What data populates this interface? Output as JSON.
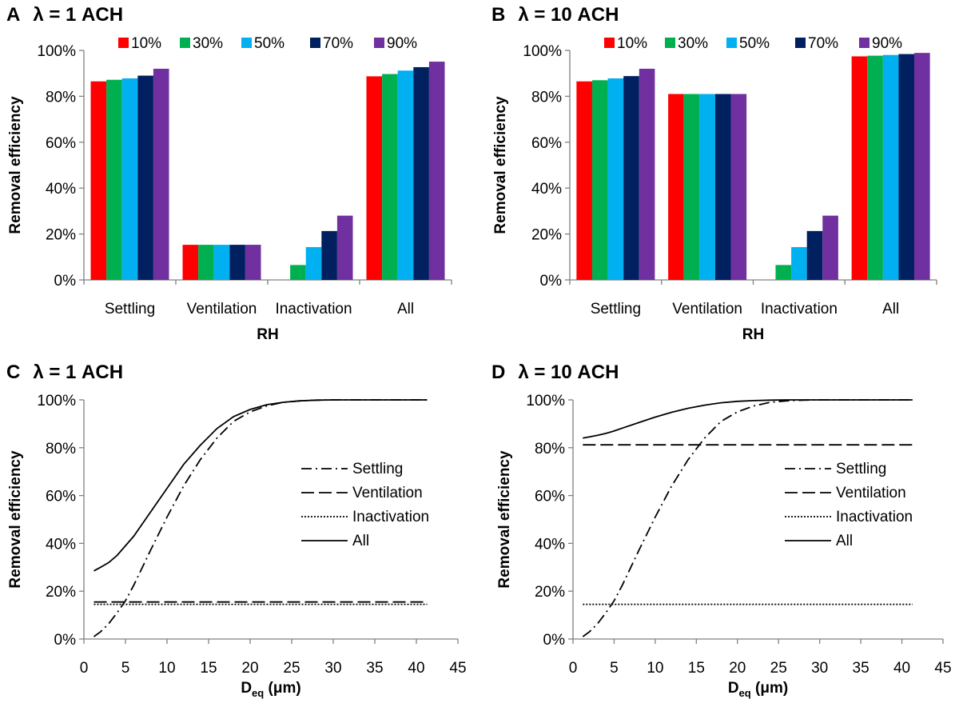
{
  "figure": {
    "panels": [
      {
        "letter": "A",
        "title": "λ = 1 ACH"
      },
      {
        "letter": "B",
        "title": "λ = 10 ACH"
      },
      {
        "letter": "C",
        "title": "λ = 1 ACH"
      },
      {
        "letter": "D",
        "title": "λ = 10 ACH"
      }
    ]
  },
  "chart_data": [
    {
      "panel": "A",
      "type": "bar",
      "title": "λ = 1 ACH",
      "xlabel": "RH",
      "ylabel": "Removal efficiency",
      "categories": [
        "Settling",
        "Ventilation",
        "Inactivation",
        "All"
      ],
      "series": [
        {
          "name": "10%",
          "color": "#ff0000",
          "values": [
            0.865,
            0.153,
            0.0,
            0.887
          ]
        },
        {
          "name": "30%",
          "color": "#00b050",
          "values": [
            0.872,
            0.153,
            0.065,
            0.897
          ]
        },
        {
          "name": "50%",
          "color": "#00b0f0",
          "values": [
            0.878,
            0.153,
            0.143,
            0.912
          ]
        },
        {
          "name": "70%",
          "color": "#002060",
          "values": [
            0.89,
            0.153,
            0.213,
            0.927
          ]
        },
        {
          "name": "90%",
          "color": "#7030a0",
          "values": [
            0.92,
            0.153,
            0.28,
            0.951
          ]
        }
      ],
      "yticks": [
        "0%",
        "20%",
        "40%",
        "60%",
        "80%",
        "100%"
      ],
      "ylim": [
        0,
        1
      ],
      "legend": "top",
      "grid": false
    },
    {
      "panel": "B",
      "type": "bar",
      "title": "λ = 10 ACH",
      "xlabel": "RH",
      "ylabel": "Removal efficiency",
      "categories": [
        "Settling",
        "Ventilation",
        "Inactivation",
        "All"
      ],
      "series": [
        {
          "name": "10%",
          "color": "#ff0000",
          "values": [
            0.865,
            0.81,
            0.0,
            0.974
          ]
        },
        {
          "name": "30%",
          "color": "#00b050",
          "values": [
            0.87,
            0.81,
            0.065,
            0.977
          ]
        },
        {
          "name": "50%",
          "color": "#00b0f0",
          "values": [
            0.878,
            0.81,
            0.143,
            0.98
          ]
        },
        {
          "name": "70%",
          "color": "#002060",
          "values": [
            0.888,
            0.81,
            0.213,
            0.984
          ]
        },
        {
          "name": "90%",
          "color": "#7030a0",
          "values": [
            0.92,
            0.81,
            0.28,
            0.989
          ]
        }
      ],
      "yticks": [
        "0%",
        "20%",
        "40%",
        "60%",
        "80%",
        "100%"
      ],
      "ylim": [
        0,
        1
      ],
      "legend": "top",
      "grid": false
    },
    {
      "panel": "C",
      "type": "line",
      "title": "λ = 1 ACH",
      "xlabel_main": "D",
      "xlabel_sub": "eq",
      "xlabel_unit": " (μm)",
      "ylabel": "Removal efficiency",
      "xticks": [
        "0",
        "5",
        "10",
        "15",
        "20",
        "25",
        "30",
        "35",
        "40",
        "45"
      ],
      "yticks": [
        "0%",
        "20%",
        "40%",
        "60%",
        "80%",
        "100%"
      ],
      "xlim": [
        0,
        45
      ],
      "ylim": [
        0,
        1
      ],
      "legend": "right",
      "grid": false,
      "series": [
        {
          "name": "Settling",
          "style": "dashdot",
          "x": [
            1.2,
            2,
            3,
            4,
            5,
            6,
            8,
            10,
            12,
            14,
            16,
            18,
            20,
            22,
            24,
            26,
            28,
            30,
            35,
            41.3
          ],
          "y": [
            0.01,
            0.03,
            0.065,
            0.11,
            0.16,
            0.225,
            0.37,
            0.51,
            0.64,
            0.75,
            0.84,
            0.91,
            0.95,
            0.975,
            0.99,
            0.996,
            0.999,
            1.0,
            1.0,
            1.0
          ]
        },
        {
          "name": "Ventilation",
          "style": "dashed",
          "x": [
            1.2,
            41.3
          ],
          "y": [
            0.155,
            0.155
          ]
        },
        {
          "name": "Inactivation",
          "style": "dotted",
          "x": [
            1.2,
            41.3
          ],
          "y": [
            0.145,
            0.145
          ]
        },
        {
          "name": "All",
          "style": "solid",
          "x": [
            1.2,
            2,
            3,
            4,
            5,
            6,
            8,
            10,
            12,
            14,
            16,
            18,
            20,
            22,
            24,
            26,
            28,
            30,
            35,
            41.3
          ],
          "y": [
            0.285,
            0.3,
            0.32,
            0.35,
            0.39,
            0.43,
            0.53,
            0.63,
            0.73,
            0.81,
            0.88,
            0.93,
            0.96,
            0.98,
            0.99,
            0.996,
            0.999,
            1.0,
            1.0,
            1.0
          ]
        }
      ]
    },
    {
      "panel": "D",
      "type": "line",
      "title": "λ = 10 ACH",
      "xlabel_main": "D",
      "xlabel_sub": "eq",
      "xlabel_unit": " (μm)",
      "ylabel": "Removal efficiency",
      "xticks": [
        "0",
        "5",
        "10",
        "15",
        "20",
        "25",
        "30",
        "35",
        "40",
        "45"
      ],
      "yticks": [
        "0%",
        "20%",
        "40%",
        "60%",
        "80%",
        "100%"
      ],
      "xlim": [
        0,
        45
      ],
      "ylim": [
        0,
        1
      ],
      "legend": "right",
      "grid": false,
      "series": [
        {
          "name": "Settling",
          "style": "dashdot",
          "x": [
            1.2,
            2,
            3,
            4,
            5,
            6,
            8,
            10,
            12,
            14,
            16,
            18,
            20,
            22,
            24,
            26,
            28,
            30,
            35,
            41.3
          ],
          "y": [
            0.01,
            0.03,
            0.065,
            0.11,
            0.16,
            0.225,
            0.37,
            0.51,
            0.64,
            0.75,
            0.84,
            0.91,
            0.95,
            0.975,
            0.99,
            0.996,
            0.999,
            1.0,
            1.0,
            1.0
          ]
        },
        {
          "name": "Ventilation",
          "style": "dashed",
          "x": [
            1.2,
            41.3
          ],
          "y": [
            0.812,
            0.812
          ]
        },
        {
          "name": "Inactivation",
          "style": "dotted",
          "x": [
            1.2,
            41.3
          ],
          "y": [
            0.145,
            0.145
          ]
        },
        {
          "name": "All",
          "style": "solid",
          "x": [
            1.2,
            2,
            3,
            4,
            5,
            6,
            8,
            10,
            12,
            14,
            16,
            18,
            20,
            22,
            24,
            26,
            28,
            30,
            35,
            41.3
          ],
          "y": [
            0.84,
            0.845,
            0.852,
            0.86,
            0.87,
            0.882,
            0.905,
            0.928,
            0.948,
            0.965,
            0.978,
            0.988,
            0.994,
            0.997,
            0.999,
            1.0,
            1.0,
            1.0,
            1.0,
            1.0
          ]
        }
      ]
    }
  ]
}
